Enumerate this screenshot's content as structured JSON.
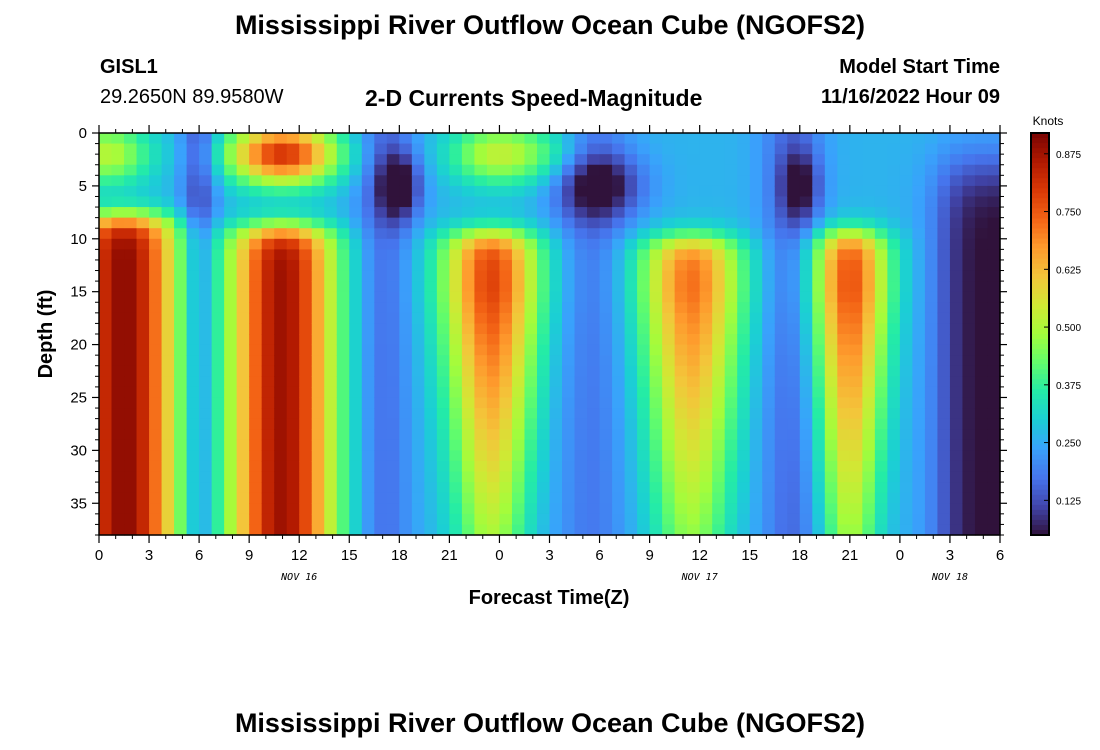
{
  "page": {
    "title": "Mississippi River Outflow Ocean Cube (NGOFS2)",
    "station_id": "GISL1",
    "coordinates": "29.2650N  89.9580W",
    "subtitle": "2-D Currents Speed-Magnitude",
    "model_start_label": "Model Start Time",
    "model_start_value": "11/16/2022 Hour 09",
    "second_title": "Mississippi River Outflow Ocean Cube (NGOFS2)"
  },
  "colors": {
    "colormap": [
      "#30123b",
      "#4145ab",
      "#4675ed",
      "#39a2fc",
      "#1bcfd4",
      "#24eca6",
      "#61fc6c",
      "#a4fc3b",
      "#d1e834",
      "#f3c63a",
      "#fe9b2d",
      "#f36315",
      "#d93806",
      "#b11901",
      "#7a0402"
    ]
  },
  "chart_data": {
    "type": "heatmap",
    "xlabel": "Forecast Time(Z)",
    "ylabel": "Depth (ft)",
    "x_range_hours_since_nov16_00Z": [
      0,
      54
    ],
    "xlim": [
      "2022-11-16 00Z",
      "2022-11-18 06Z"
    ],
    "ylim": [
      0,
      38
    ],
    "x_tick_labels": [
      "0",
      "3",
      "6",
      "9",
      "12",
      "15",
      "18",
      "21",
      "0",
      "3",
      "6",
      "9",
      "12",
      "15",
      "18",
      "21",
      "0",
      "3",
      "6"
    ],
    "y_tick_values": [
      0,
      5,
      10,
      15,
      20,
      25,
      30,
      35
    ],
    "y_tick_labels": [
      "0",
      "5",
      "10",
      "15",
      "20",
      "25",
      "30",
      "35"
    ],
    "date_labels": [
      {
        "text": "NOV 16",
        "hour": 12
      },
      {
        "text": "NOV 17",
        "hour": 36
      },
      {
        "text": "NOV 18",
        "hour": 51
      }
    ],
    "colorbar": {
      "label": "Knots",
      "range": [
        0.05,
        0.92
      ],
      "ticks": [
        0.125,
        0.25,
        0.375,
        0.5,
        0.625,
        0.75,
        0.875
      ],
      "tick_labels": [
        "0.125",
        "0.250",
        "0.375",
        "0.500",
        "0.625",
        "0.750",
        "0.875"
      ]
    },
    "features": [
      {
        "kind": "deep_max",
        "center_hour": 1.5,
        "speed_knots": 0.9
      },
      {
        "kind": "deep_max",
        "center_hour": 11,
        "speed_knots": 0.88
      },
      {
        "kind": "deep_max",
        "center_hour": 23.5,
        "speed_knots": 0.78
      },
      {
        "kind": "deep_max",
        "center_hour": 35.5,
        "speed_knots": 0.72
      },
      {
        "kind": "deep_max",
        "center_hour": 45,
        "speed_knots": 0.76
      },
      {
        "kind": "surface_max",
        "center_hour": 11,
        "speed_knots": 0.82
      },
      {
        "kind": "surface_max",
        "center_hour": 23,
        "speed_knots": 0.5
      },
      {
        "kind": "surface_min",
        "center_hour": 18,
        "speed_knots": 0.08
      },
      {
        "kind": "surface_min",
        "center_hour": 30,
        "speed_knots": 0.08
      },
      {
        "kind": "surface_min",
        "center_hour": 42,
        "speed_knots": 0.1
      },
      {
        "kind": "slack",
        "center_hour": 6,
        "speed_knots": 0.2
      },
      {
        "kind": "slack",
        "center_hour": 17,
        "speed_knots": 0.2
      },
      {
        "kind": "slack",
        "center_hour": 29.5,
        "speed_knots": 0.22
      },
      {
        "kind": "slack",
        "center_hour": 41.5,
        "speed_knots": 0.2
      },
      {
        "kind": "slack",
        "center_hour": 52,
        "speed_knots": 0.07
      }
    ]
  }
}
